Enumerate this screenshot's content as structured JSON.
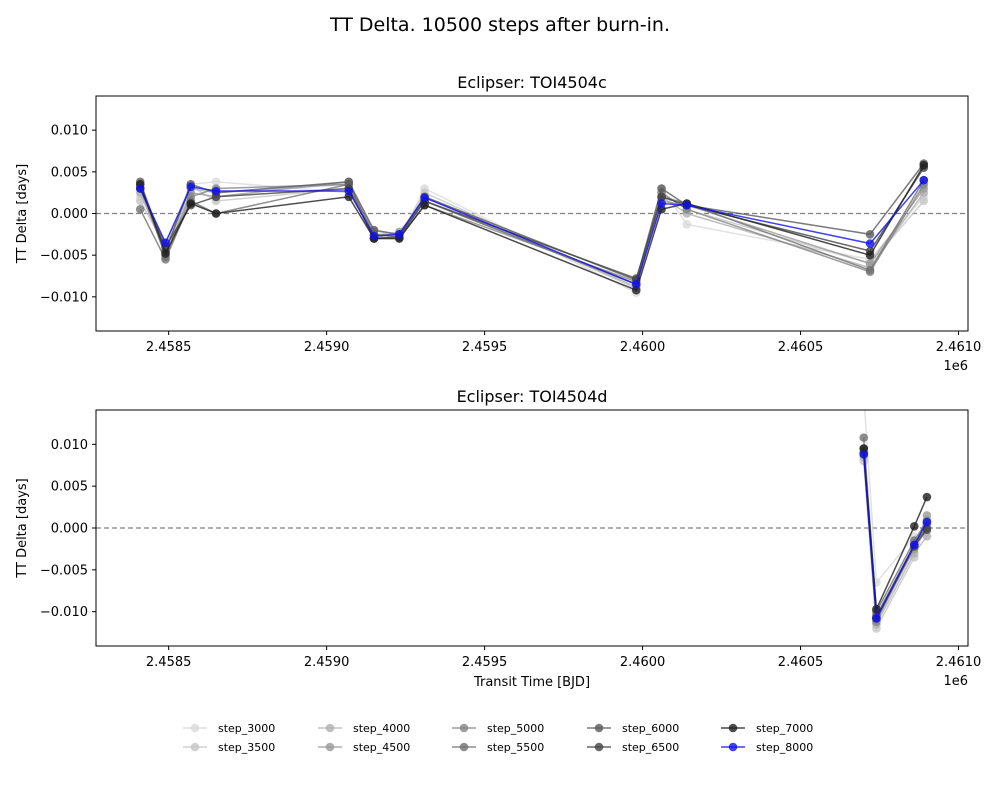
{
  "suptitle": "TT Delta. 10500 steps after burn-in.",
  "chart_data": [
    {
      "type": "line",
      "title": "Eclipser: TOI4504c",
      "xlabel": "",
      "ylabel": "TT Delta [days]",
      "offset_label": "1e6",
      "xlim": [
        2.45827,
        2.46103
      ],
      "ylim": [
        -0.0141,
        0.0141
      ],
      "xticks": [
        2.4585,
        2.459,
        2.4595,
        2.46,
        2.4605,
        2.461
      ],
      "xtick_labels": [
        "2.4585",
        "2.4590",
        "2.4595",
        "2.4600",
        "2.4605",
        "2.4610"
      ],
      "yticks": [
        -0.01,
        -0.005,
        0.0,
        0.005,
        0.01
      ],
      "ytick_labels": [
        "−0.010",
        "−0.005",
        "0.000",
        "0.005",
        "0.010"
      ],
      "zero_line": true,
      "x": [
        2.45841,
        2.45849,
        2.45857,
        2.45865,
        2.45907,
        2.45915,
        2.45923,
        2.45931,
        2.45998,
        2.46006,
        2.46014,
        2.46072,
        2.46089
      ],
      "series": [
        {
          "name": "step_3000",
          "color": "#d9d9d9",
          "values": [
            0.002,
            -0.0035,
            0.0035,
            0.0038,
            0.0025,
            -0.0025,
            -0.003,
            0.003,
            -0.0095,
            0.003,
            -0.0013,
            -0.0055,
            0.002
          ]
        },
        {
          "name": "step_3500",
          "color": "#c6c6c6",
          "values": [
            0.0015,
            -0.004,
            0.0033,
            0.0015,
            0.003,
            -0.002,
            -0.0028,
            0.0025,
            -0.009,
            0.0025,
            0.0005,
            -0.006,
            0.0015
          ]
        },
        {
          "name": "step_4000",
          "color": "#b0b0b0",
          "values": [
            0.0025,
            -0.0045,
            0.003,
            0.0025,
            0.0035,
            -0.0025,
            -0.0025,
            0.002,
            -0.0088,
            0.002,
            0.0,
            -0.0065,
            0.0025
          ]
        },
        {
          "name": "step_4500",
          "color": "#9a9a9a",
          "values": [
            0.003,
            -0.005,
            0.0025,
            0.002,
            0.0038,
            -0.003,
            -0.0022,
            0.0015,
            -0.0085,
            0.0015,
            0.001,
            -0.006,
            0.003
          ]
        },
        {
          "name": "step_5000",
          "color": "#858585",
          "values": [
            0.0035,
            -0.0052,
            0.002,
            0.003,
            0.0035,
            -0.003,
            -0.003,
            0.001,
            -0.0082,
            0.0025,
            0.0005,
            -0.007,
            0.0035
          ]
        },
        {
          "name": "step_5500",
          "color": "#707070",
          "values": [
            0.0005,
            -0.0055,
            0.0015,
            0.0,
            0.0035,
            -0.0025,
            -0.0028,
            0.0015,
            -0.0085,
            0.002,
            0.0012,
            -0.0068,
            0.004
          ]
        },
        {
          "name": "step_6000",
          "color": "#5a5a5a",
          "values": [
            0.0038,
            -0.0045,
            0.0035,
            0.0025,
            0.0038,
            -0.002,
            -0.0025,
            0.002,
            -0.008,
            0.003,
            0.001,
            -0.0025,
            0.006
          ]
        },
        {
          "name": "step_6500",
          "color": "#444444",
          "values": [
            0.003,
            -0.004,
            0.001,
            0.002,
            0.003,
            -0.003,
            -0.0028,
            0.0015,
            -0.0078,
            0.002,
            0.001,
            -0.0045,
            0.0055
          ]
        },
        {
          "name": "step_7000",
          "color": "#1f1f1f",
          "values": [
            0.0035,
            -0.0048,
            0.0012,
            0.0,
            0.002,
            -0.003,
            -0.003,
            0.001,
            -0.0092,
            0.0005,
            0.0012,
            -0.005,
            0.0058
          ]
        },
        {
          "name": "step_8000",
          "color": "#1010ee",
          "values": [
            0.003,
            -0.0035,
            0.0032,
            0.0027,
            0.0027,
            -0.0027,
            -0.0025,
            0.0019,
            -0.0085,
            0.0012,
            0.001,
            -0.0036,
            0.004
          ]
        }
      ]
    },
    {
      "type": "line",
      "title": "Eclipser: TOI4504d",
      "xlabel": "Transit Time [BJD]",
      "ylabel": "TT Delta [days]",
      "offset_label": "1e6",
      "xlim": [
        2.45827,
        2.46103
      ],
      "ylim": [
        -0.0141,
        0.0141
      ],
      "xticks": [
        2.4585,
        2.459,
        2.4595,
        2.46,
        2.4605,
        2.461
      ],
      "xtick_labels": [
        "2.4585",
        "2.4590",
        "2.4595",
        "2.4600",
        "2.4605",
        "2.4610"
      ],
      "yticks": [
        -0.01,
        -0.005,
        0.0,
        0.005,
        0.01
      ],
      "ytick_labels": [
        "−0.010",
        "−0.005",
        "0.000",
        "0.005",
        "0.010"
      ],
      "zero_line": true,
      "x": [
        2.4607,
        2.46074,
        2.46086,
        2.4609
      ],
      "series": [
        {
          "name": "step_3000",
          "color": "#d9d9d9",
          "values": [
            0.016,
            -0.0065,
            -0.001,
            -0.0005
          ]
        },
        {
          "name": "step_3500",
          "color": "#c6c6c6",
          "values": [
            0.008,
            -0.012,
            -0.0035,
            0.001
          ]
        },
        {
          "name": "step_4000",
          "color": "#b0b0b0",
          "values": [
            0.0085,
            -0.0115,
            -0.003,
            -0.001
          ]
        },
        {
          "name": "step_4500",
          "color": "#9a9a9a",
          "values": [
            0.009,
            -0.011,
            -0.0025,
            0.0015
          ]
        },
        {
          "name": "step_5000",
          "color": "#858585",
          "values": [
            0.0088,
            -0.0112,
            -0.002,
            0.0005
          ]
        },
        {
          "name": "step_5500",
          "color": "#707070",
          "values": [
            0.0108,
            -0.01,
            -0.0015,
            0.0008
          ]
        },
        {
          "name": "step_6000",
          "color": "#5a5a5a",
          "values": [
            0.0095,
            -0.0105,
            -0.002,
            0.0
          ]
        },
        {
          "name": "step_6500",
          "color": "#444444",
          "values": [
            0.009,
            -0.0108,
            -0.0022,
            -0.0002
          ]
        },
        {
          "name": "step_7000",
          "color": "#1f1f1f",
          "values": [
            0.0095,
            -0.0097,
            0.0002,
            0.0037
          ]
        },
        {
          "name": "step_8000",
          "color": "#1010ee",
          "values": [
            0.0088,
            -0.0108,
            -0.002,
            0.0007
          ]
        }
      ]
    }
  ],
  "legend": {
    "placement": "bottom-center",
    "columns": 5,
    "entries": [
      "step_3000",
      "step_3500",
      "step_4000",
      "step_4500",
      "step_5000",
      "step_5500",
      "step_6000",
      "step_6500",
      "step_7000",
      "step_8000"
    ]
  }
}
